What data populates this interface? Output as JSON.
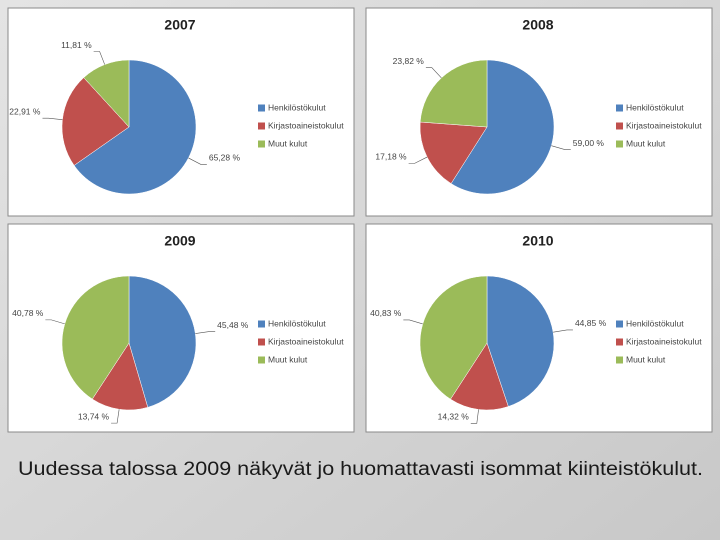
{
  "chart_data": [
    {
      "type": "pie",
      "title": "2007",
      "categories": [
        "Henkilöstökulut",
        "Kirjastoaineistokulut",
        "Muut kulut"
      ],
      "values": [
        65.28,
        22.91,
        11.81
      ],
      "value_labels": [
        "65,28 %",
        "22,91 %",
        "11,81 %"
      ],
      "colors": [
        "#4f81bd",
        "#c0504d",
        "#9bbb59"
      ],
      "legend": "right"
    },
    {
      "type": "pie",
      "title": "2008",
      "categories": [
        "Henkilöstökulut",
        "Kirjastoaineistokulut",
        "Muut kulut"
      ],
      "values": [
        59.0,
        17.18,
        23.82
      ],
      "value_labels": [
        "59,00 %",
        "17,18 %",
        "23,82 %"
      ],
      "colors": [
        "#4f81bd",
        "#c0504d",
        "#9bbb59"
      ],
      "legend": "right"
    },
    {
      "type": "pie",
      "title": "2009",
      "categories": [
        "Henkilöstökulut",
        "Kirjastoaineistokulut",
        "Muut kulut"
      ],
      "values": [
        45.48,
        13.74,
        40.78
      ],
      "value_labels": [
        "45,48 %",
        "13,74 %",
        "40,78 %"
      ],
      "colors": [
        "#4f81bd",
        "#c0504d",
        "#9bbb59"
      ],
      "legend": "right"
    },
    {
      "type": "pie",
      "title": "2010",
      "categories": [
        "Henkilöstökulut",
        "Kirjastoaineistokulut",
        "Muut kulut"
      ],
      "values": [
        44.85,
        14.32,
        40.83
      ],
      "value_labels": [
        "44,85 %",
        "14,32 %",
        "40,83 %"
      ],
      "colors": [
        "#4f81bd",
        "#c0504d",
        "#9bbb59"
      ],
      "legend": "right"
    }
  ],
  "caption": "Uudessa talossa 2009 näkyvät jo huomattavasti isommat kiinteistökulut."
}
